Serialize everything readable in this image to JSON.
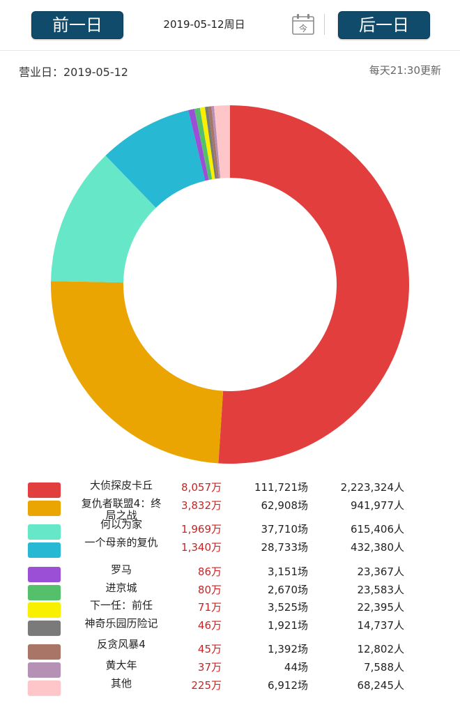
{
  "header": {
    "prev_label": "前一日",
    "next_label": "后一日",
    "date_text": "2019-05-12周日",
    "calendar_icon_char": "今"
  },
  "sub": {
    "business_day": "营业日：2019-05-12",
    "update_note": "每天21:30更新"
  },
  "chart_data": {
    "type": "pie",
    "categories": [
      "大侦探皮卡丘",
      "复仇者联盟4：终局之战",
      "何以为家",
      "一个母亲的复仇",
      "罗马",
      "进京城",
      "下一任：前任",
      "神奇乐园历险记",
      "反贪风暴4",
      "黄大年",
      "其他"
    ],
    "values": [
      8057,
      3832,
      1969,
      1340,
      86,
      80,
      71,
      46,
      45,
      37,
      225
    ],
    "colors": [
      "#e33e3e",
      "#eba503",
      "#66e8c8",
      "#27b8d4",
      "#9b4fd6",
      "#55c06c",
      "#f8f000",
      "#7a7a7a",
      "#a87566",
      "#b691b6",
      "#ffc6c9"
    ],
    "unit": "万",
    "donut": true
  },
  "table": {
    "rows": [
      {
        "name": "大侦探皮卡丘",
        "revenue": "8,057万",
        "shows": "111,721场",
        "people": "2,223,324人"
      },
      {
        "name": "复仇者联盟4：终局之战",
        "revenue": "3,832万",
        "shows": "62,908场",
        "people": "941,977人"
      },
      {
        "name": "何以为家",
        "revenue": "1,969万",
        "shows": "37,710场",
        "people": "615,406人"
      },
      {
        "name": "一个母亲的复仇",
        "revenue": "1,340万",
        "shows": "28,733场",
        "people": "432,380人"
      },
      {
        "name": "罗马",
        "revenue": "86万",
        "shows": "3,151场",
        "people": "23,367人"
      },
      {
        "name": "进京城",
        "revenue": "80万",
        "shows": "2,670场",
        "people": "23,583人"
      },
      {
        "name": "下一任：前任",
        "revenue": "71万",
        "shows": "3,525场",
        "people": "22,395人"
      },
      {
        "name": "神奇乐园历险记",
        "revenue": "46万",
        "shows": "1,921场",
        "people": "14,737人"
      },
      {
        "name": "反贪风暴4",
        "revenue": "45万",
        "shows": "1,392场",
        "people": "12,802人"
      },
      {
        "name": "黄大年",
        "revenue": "37万",
        "shows": "44场",
        "people": "7,588人"
      },
      {
        "name": "其他",
        "revenue": "225万",
        "shows": "6,912场",
        "people": "68,245人"
      }
    ]
  }
}
